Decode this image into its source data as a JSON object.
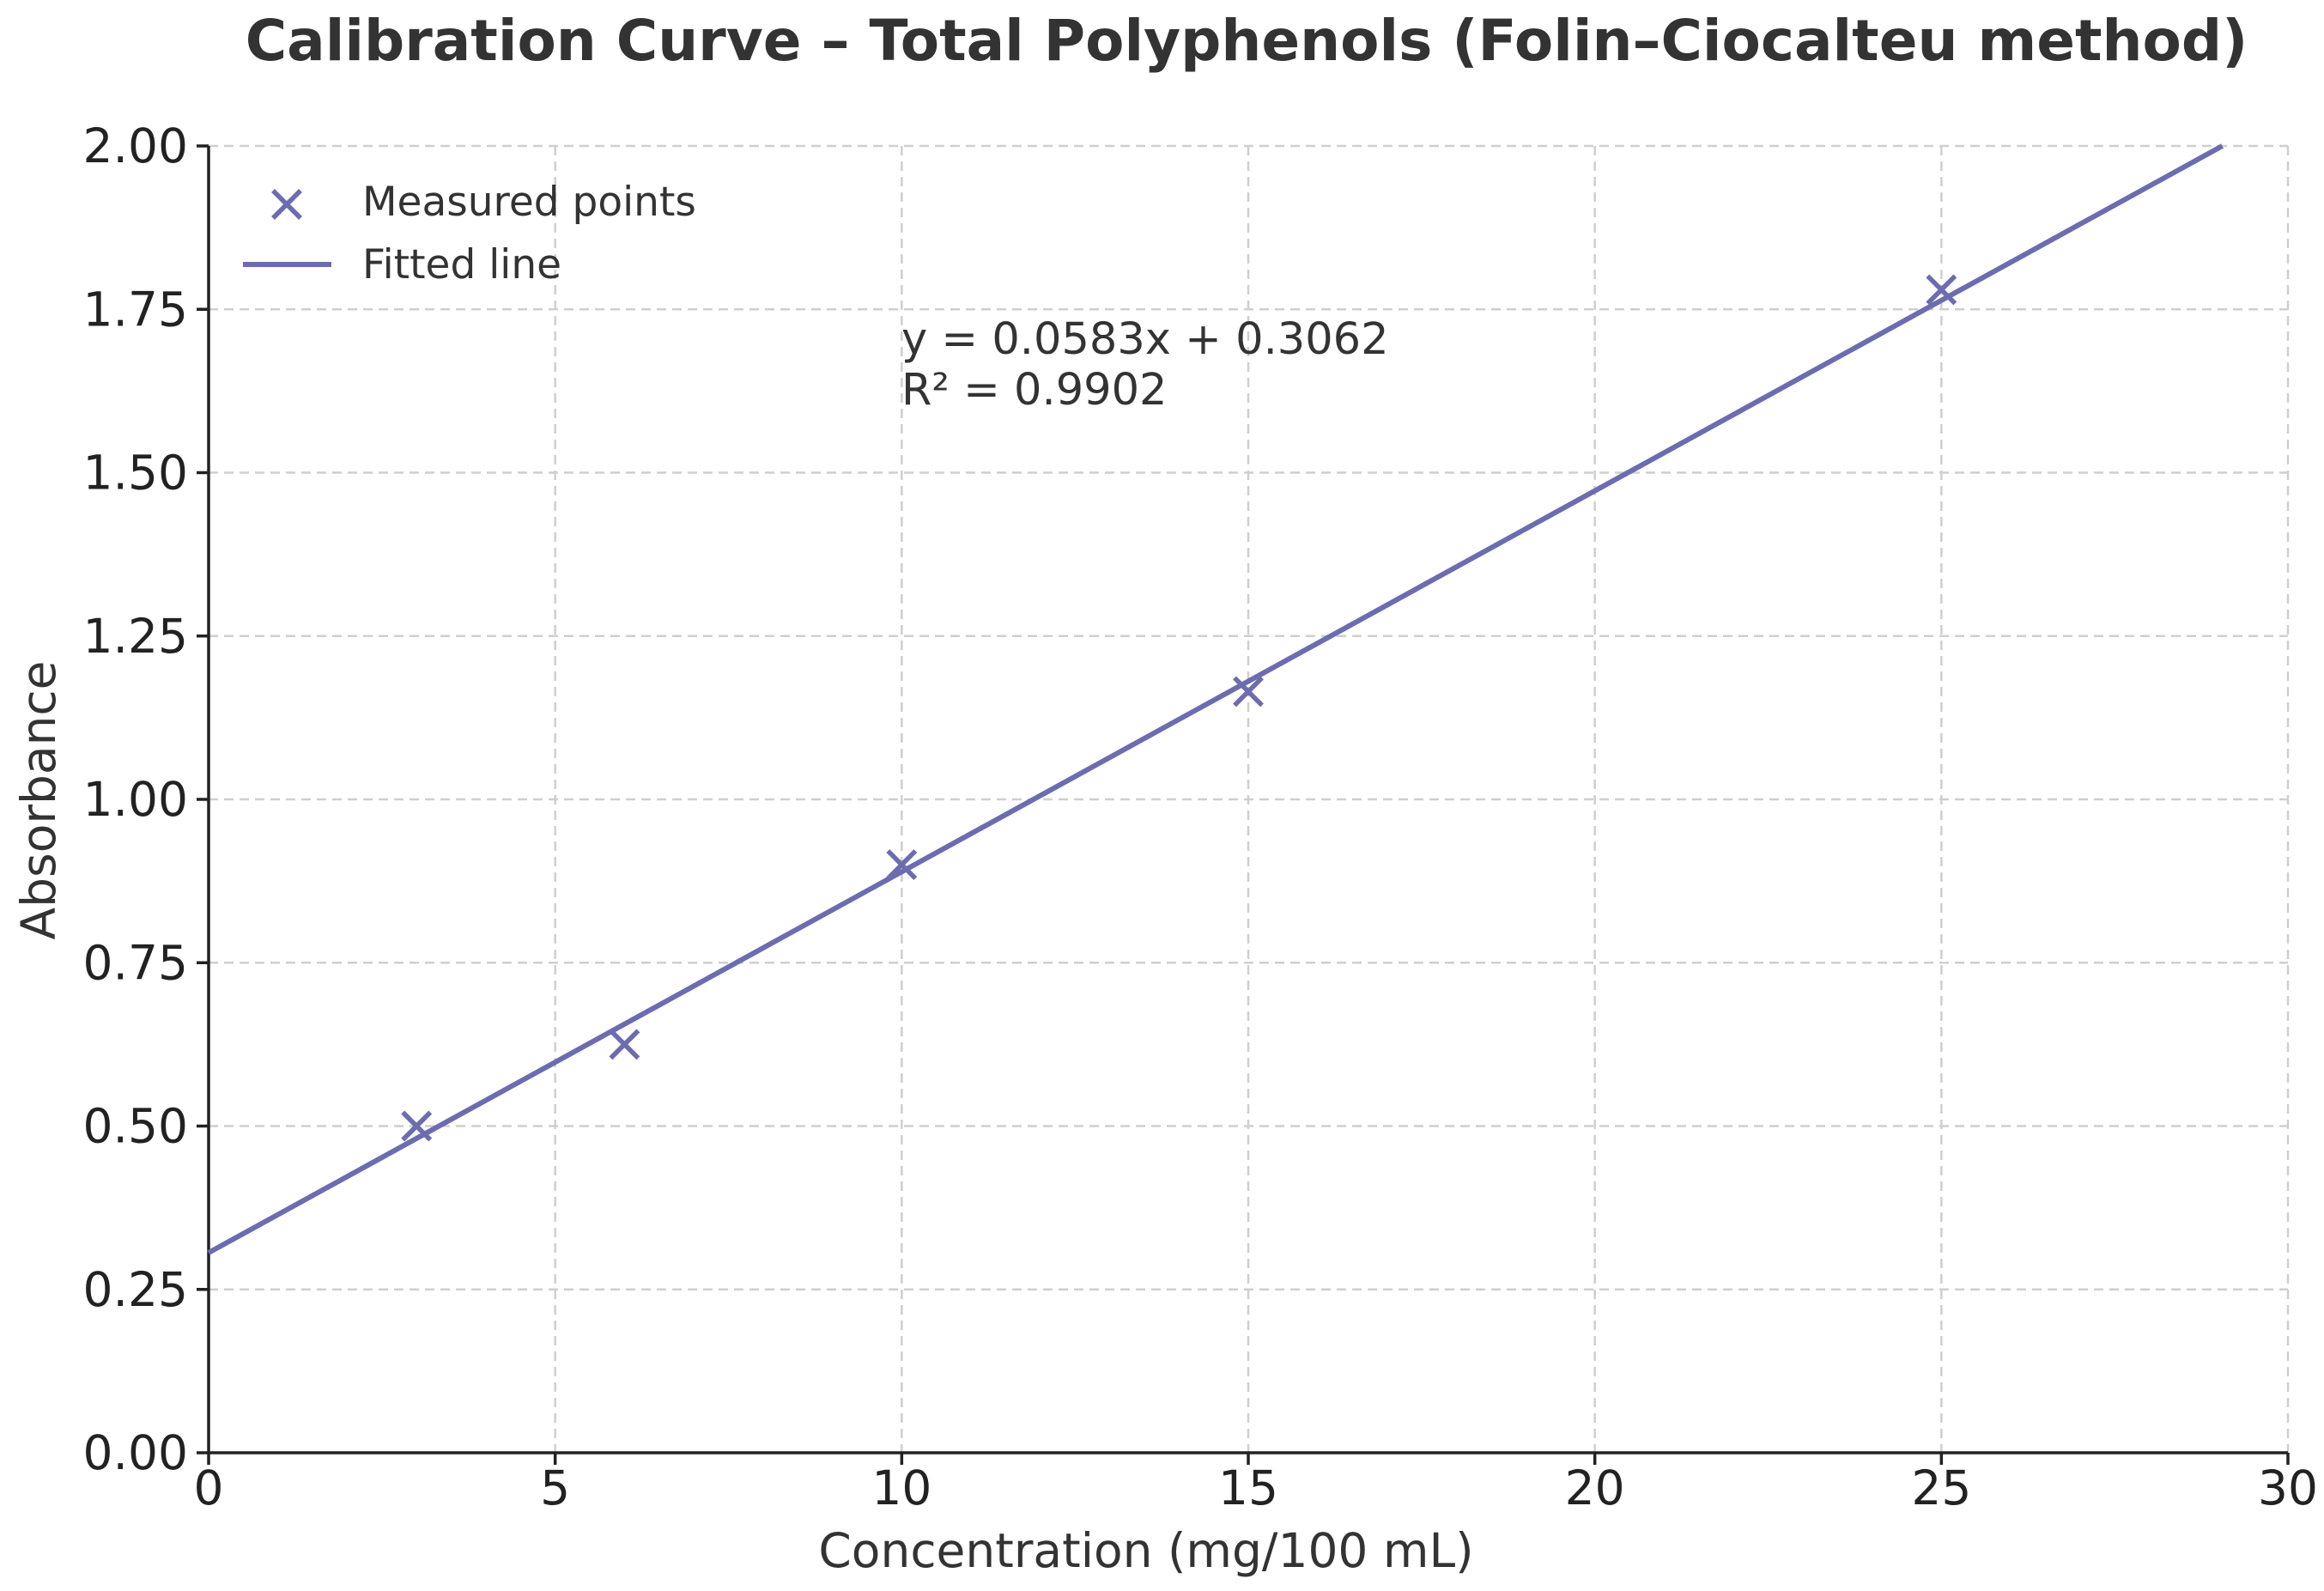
{
  "chart_data": {
    "type": "scatter",
    "title": "Calibration Curve – Total Polyphenols (Folin–Ciocalteu method)",
    "xlabel": "Concentration (mg/100 mL)",
    "ylabel": "Absorbance",
    "xlim": [
      0,
      30
    ],
    "ylim": [
      0,
      2
    ],
    "grid": true,
    "legend_position": "top-left",
    "x_ticks": [
      0,
      5,
      10,
      15,
      20,
      25,
      30
    ],
    "x_tick_labels": [
      "0",
      "5",
      "10",
      "15",
      "20",
      "25",
      "30"
    ],
    "y_ticks": [
      0,
      0.25,
      0.5,
      0.75,
      1,
      1.25,
      1.5,
      1.75,
      2
    ],
    "y_tick_labels": [
      "0.00",
      "0.25",
      "0.50",
      "0.75",
      "1.00",
      "1.25",
      "1.50",
      "1.75",
      "2.00"
    ],
    "series": [
      {
        "name": "Measured points",
        "kind": "scatter",
        "marker": "x",
        "color": "#6c6cb0",
        "x": [
          3,
          6,
          10,
          15,
          25
        ],
        "y": [
          0.5,
          0.625,
          0.9,
          1.165,
          1.78
        ]
      },
      {
        "name": "Fitted line",
        "kind": "line",
        "color": "#6c6cb0",
        "slope": 0.0583,
        "intercept": 0.3062,
        "x_range": [
          0,
          30
        ]
      }
    ],
    "annotations": {
      "equation": "y = 0.0583x + 0.3062",
      "r_squared": "R² = 0.9902"
    }
  }
}
